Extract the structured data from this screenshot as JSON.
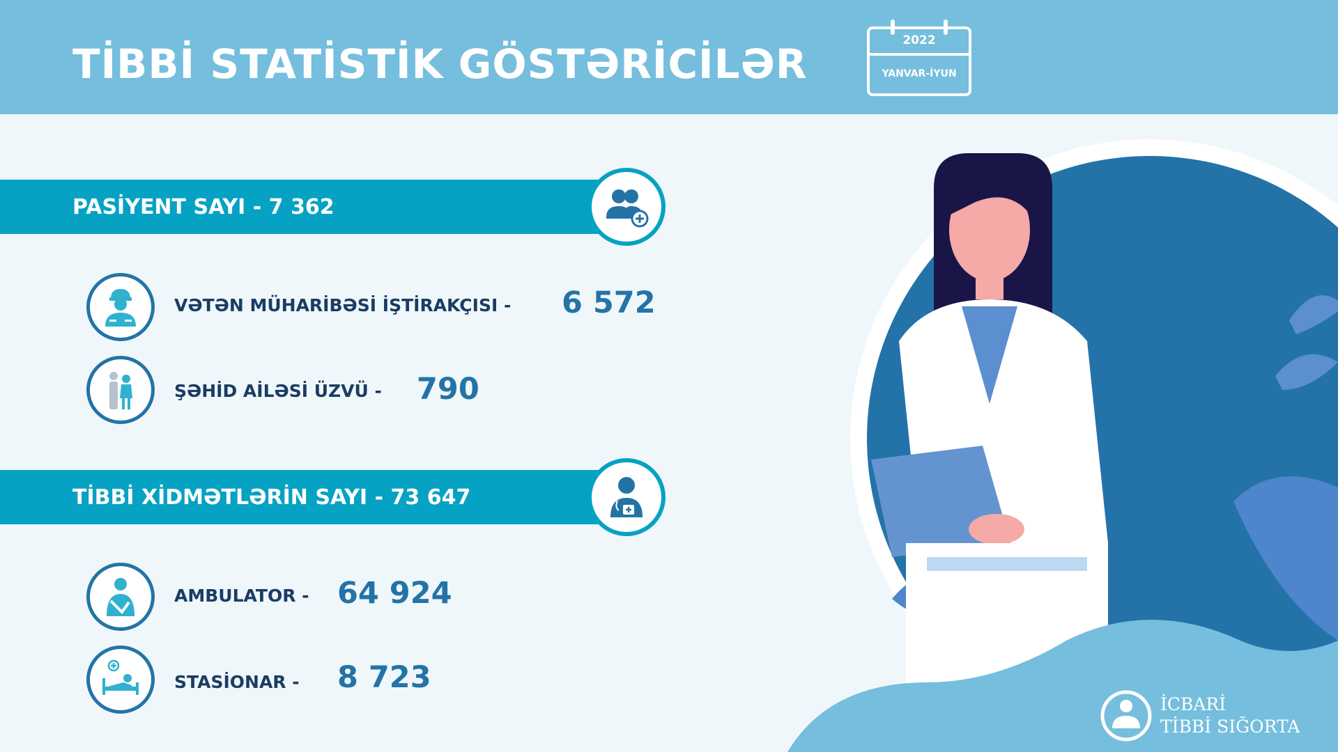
{
  "header": {
    "title": "TİBBİ STATİSTİK GÖSTƏRİCİLƏR",
    "calendar": {
      "year": "2022",
      "range": "YANVAR-İYUN"
    }
  },
  "sections": [
    {
      "label": "PASİYENT SAYI - 7 362",
      "icon": "patients-add-icon",
      "items": [
        {
          "label": "VƏTƏN MÜHARİBƏSİ İŞTİRAKÇISI -",
          "value": "6 572",
          "icon": "soldier-icon"
        },
        {
          "label": "ŞƏHİD AİLƏSİ ÜZVÜ -",
          "value": "790",
          "icon": "family-icon"
        }
      ]
    },
    {
      "label": "TİBBİ XİDMƏTLƏRİN SAYI - 73 647",
      "icon": "doctor-icon",
      "items": [
        {
          "label": "AMBULATOR -",
          "value": "64 924",
          "icon": "outpatient-icon"
        },
        {
          "label": "STASİONAR -",
          "value": "8 723",
          "icon": "hospital-bed-icon"
        }
      ]
    }
  ],
  "logo": {
    "line1": "İCBARİ",
    "line2": "TİBBİ SIĞORTA"
  },
  "colors": {
    "header": "#75bedd",
    "bar": "#06a2c3",
    "value": "#2473a6",
    "label": "#1b3c63",
    "illustration_circle": "#2373a8"
  }
}
